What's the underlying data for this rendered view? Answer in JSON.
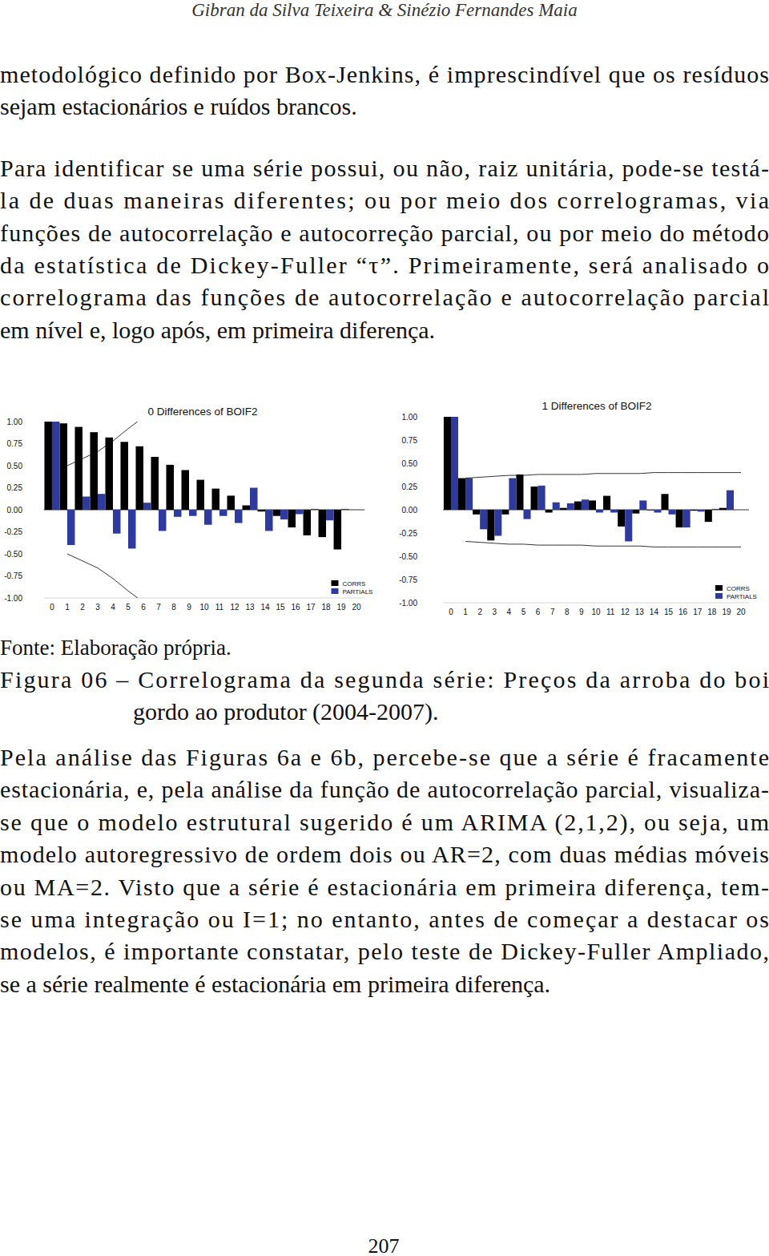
{
  "running_head": "Gibran da Silva Teixeira & Sinézio Fernandes Maia",
  "body_before": [
    [
      "metodológico definido por Box-Jenkins, é imprescindível que os resíduos",
      "sejam estacionários e ruídos brancos."
    ],
    [
      "Para identificar se uma série possui, ou não, raiz unitária, pode-se testá-",
      "la de duas maneiras diferentes; ou por meio dos correlogramas, via",
      "funções de autocorrelação e autocorreção parcial, ou por meio do método",
      "da estatística de Dickey-Fuller “τ”. Primeiramente, será analisado o",
      "correlograma das funções de autocorrelação e autocorrelação parcial",
      "em nível e, logo após, em primeira diferença."
    ]
  ],
  "chart_data": [
    {
      "type": "bar",
      "title": "0 Differences of BOIF2",
      "x": [
        0,
        1,
        2,
        3,
        4,
        5,
        6,
        7,
        8,
        9,
        10,
        11,
        12,
        13,
        14,
        15,
        16,
        17,
        18,
        19
      ],
      "xlim": [
        -0.55,
        20.55
      ],
      "xticks": [
        0,
        1,
        2,
        3,
        4,
        5,
        6,
        7,
        8,
        9,
        10,
        11,
        12,
        13,
        14,
        15,
        16,
        17,
        18,
        19,
        20
      ],
      "ylim": [
        -1,
        1
      ],
      "yticks": [
        {
          "value": -1,
          "label": "-1.00"
        },
        -0.75,
        {
          "value": -0.5,
          "label": "-0.50"
        },
        -0.25,
        {
          "value": 0,
          "label": "0.00"
        },
        0.25,
        {
          "value": 0.5,
          "label": "0.50"
        },
        0.75,
        {
          "value": 1,
          "label": "1.00"
        }
      ],
      "legend": "lower right",
      "series": [
        {
          "name": "CORRS",
          "color": "#000000",
          "values": [
            1.0,
            0.98,
            0.94,
            0.88,
            0.82,
            0.77,
            0.72,
            0.6,
            0.51,
            0.45,
            0.34,
            0.24,
            0.16,
            0.05,
            -0.02,
            -0.07,
            -0.2,
            -0.29,
            -0.31,
            -0.45
          ]
        },
        {
          "name": "PARTIALS",
          "color": "#2e3a9c",
          "values": [
            1.0,
            -0.4,
            0.15,
            0.18,
            -0.27,
            -0.44,
            0.08,
            -0.24,
            -0.08,
            -0.07,
            -0.17,
            -0.07,
            -0.15,
            0.25,
            -0.24,
            -0.11,
            -0.05,
            0.01,
            -0.12,
            0.01
          ]
        }
      ],
      "bands": {
        "x": [
          1,
          2,
          3,
          4,
          5,
          6
        ],
        "upper": [
          0.5,
          0.58,
          0.66,
          0.78,
          0.92,
          1.05
        ],
        "lower": [
          -0.5,
          -0.58,
          -0.66,
          -0.78,
          -0.92,
          -1.05
        ]
      }
    },
    {
      "type": "bar",
      "title": "1 Differences of BOIF2",
      "x": [
        0,
        1,
        2,
        3,
        4,
        5,
        6,
        7,
        8,
        9,
        10,
        11,
        12,
        13,
        14,
        15,
        16,
        17,
        18,
        19
      ],
      "xlim": [
        -0.55,
        20.55
      ],
      "xticks": [
        0,
        1,
        2,
        3,
        4,
        5,
        6,
        7,
        8,
        9,
        10,
        11,
        12,
        13,
        14,
        15,
        16,
        17,
        18,
        19,
        20
      ],
      "ylim": [
        -1,
        1
      ],
      "yticks": [
        {
          "value": -1,
          "label": "-1.00"
        },
        -0.75,
        {
          "value": -0.5,
          "label": "-0.50"
        },
        -0.25,
        {
          "value": 0,
          "label": "0.00"
        },
        0.25,
        {
          "value": 0.5,
          "label": "0.50"
        },
        0.75,
        {
          "value": 1,
          "label": "1.00"
        }
      ],
      "legend": "lower right",
      "series": [
        {
          "name": "CORRS",
          "color": "#000000",
          "values": [
            1.0,
            0.34,
            -0.05,
            -0.33,
            -0.05,
            0.38,
            0.25,
            -0.03,
            0.02,
            0.09,
            0.1,
            0.15,
            -0.18,
            -0.04,
            0.0,
            0.17,
            -0.19,
            -0.01,
            -0.13,
            0.02
          ]
        },
        {
          "name": "PARTIALS",
          "color": "#2e3a9c",
          "values": [
            1.0,
            0.34,
            -0.21,
            -0.28,
            0.34,
            -0.1,
            0.26,
            0.08,
            0.07,
            0.11,
            -0.03,
            -0.03,
            -0.34,
            0.1,
            -0.03,
            -0.05,
            -0.19,
            -0.02,
            0.01,
            0.21
          ]
        }
      ],
      "bands": {
        "x": [
          1,
          2,
          3,
          4,
          5,
          6,
          7,
          8,
          9,
          10,
          11,
          12,
          13,
          14,
          15,
          16,
          17,
          18,
          19,
          20
        ],
        "upper": [
          0.34,
          0.35,
          0.36,
          0.37,
          0.37,
          0.38,
          0.38,
          0.38,
          0.38,
          0.39,
          0.39,
          0.39,
          0.39,
          0.4,
          0.4,
          0.4,
          0.4,
          0.4,
          0.4,
          0.4
        ],
        "lower": [
          -0.34,
          -0.35,
          -0.36,
          -0.37,
          -0.37,
          -0.38,
          -0.38,
          -0.38,
          -0.38,
          -0.39,
          -0.39,
          -0.39,
          -0.39,
          -0.4,
          -0.4,
          -0.4,
          -0.4,
          -0.4,
          -0.4,
          -0.4
        ]
      }
    }
  ],
  "source": "Fonte: Elaboração própria.",
  "caption": [
    "Figura 06 – Correlograma da segunda série: Preços da arroba do boi",
    "gordo ao produtor (2004-2007)."
  ],
  "body_after": [
    [
      "Pela análise das Figuras 6a e 6b, percebe-se que a série é fracamente",
      "estacionária, e, pela análise da função de autocorrelação parcial, visualiza-",
      "se que o modelo estrutural sugerido é um ARIMA (2,1,2), ou seja, um",
      "modelo autoregressivo de ordem dois ou AR=2, com duas médias móveis",
      "ou MA=2.  Visto que a série é estacionária em primeira diferença, tem-",
      "se uma integração ou I=1; no entanto, antes de começar a destacar os",
      "modelos, é importante constatar, pelo teste de Dickey-Fuller Ampliado,",
      "se a série realmente é estacionária em primeira diferença."
    ]
  ],
  "page_number": 207
}
